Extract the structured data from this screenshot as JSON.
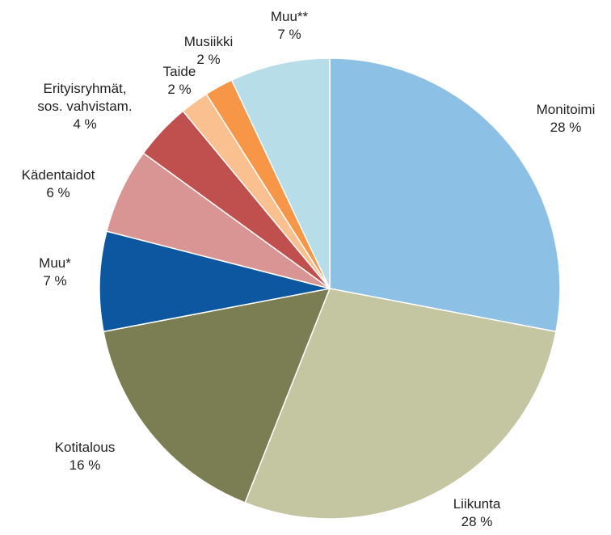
{
  "chart_data": {
    "type": "pie",
    "categories": [
      "Monitoimi",
      "Liikunta",
      "Kotitalous",
      "Muu*",
      "Kädentaidot",
      "Erityisryhmät,\nsos. vahvistam.",
      "Taide",
      "Musiikki",
      "Muu**"
    ],
    "values": [
      28,
      28,
      16,
      7,
      6,
      4,
      2,
      2,
      7
    ],
    "value_labels": [
      "28 %",
      "28 %",
      "16 %",
      "7 %",
      "6 %",
      "4 %",
      "2 %",
      "2 %",
      "7 %"
    ],
    "colors": [
      "#8cc0e4",
      "#c4c5a1",
      "#7a7e52",
      "#0d56a0",
      "#d99594",
      "#c0504d",
      "#fac090",
      "#f79646",
      "#b7dde8"
    ]
  }
}
